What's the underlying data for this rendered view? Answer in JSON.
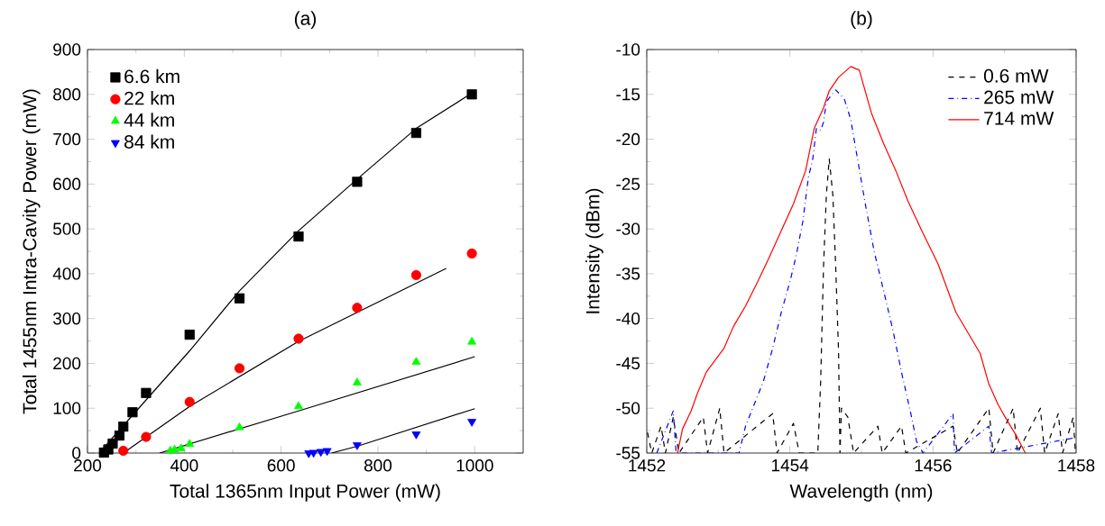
{
  "chart_data": [
    {
      "type": "scatter",
      "title": "(a)",
      "xlabel": "Total 1365nm Input Power (mW)",
      "ylabel": "Total 1455nm Intra-Cavity Power (mW)",
      "xlim": [
        200,
        1100
      ],
      "ylim": [
        0,
        900
      ],
      "xticks": [
        200,
        400,
        600,
        800,
        1000
      ],
      "yticks": [
        0,
        100,
        200,
        300,
        400,
        500,
        600,
        700,
        800,
        900
      ],
      "legend": "top left",
      "series": [
        {
          "name": "6.6 km",
          "marker": "square",
          "color": "#000000",
          "x": [
            234,
            243,
            252,
            266,
            274,
            293,
            321,
            411,
            514,
            636,
            757,
            879,
            994
          ],
          "values": [
            1,
            8,
            21,
            39,
            59,
            91,
            134,
            264,
            345,
            483,
            605,
            714,
            800
          ]
        },
        {
          "name": "22  km",
          "marker": "circle",
          "color": "#ff0000",
          "x": [
            274,
            321,
            411,
            514,
            636,
            757,
            879,
            994
          ],
          "values": [
            5,
            36,
            114,
            189,
            255,
            324,
            397,
            445
          ]
        },
        {
          "name": "44  km",
          "marker": "triangle",
          "color": "#00ff00",
          "x": [
            371,
            380,
            393,
            411,
            514,
            636,
            757,
            879,
            994
          ],
          "values": [
            5,
            7,
            10,
            20,
            57,
            104,
            157,
            203,
            248
          ]
        },
        {
          "name": "84  km",
          "marker": "triangle-down",
          "color": "#0000ff",
          "x": [
            657,
            667,
            682,
            695,
            757,
            879,
            994
          ],
          "values": [
            0,
            1,
            3,
            5,
            18,
            42,
            70
          ]
        },
        {
          "type": "line",
          "color": "#000000",
          "x": [
            224,
            411,
            514,
            636,
            757,
            879,
            1000
          ],
          "values": [
            0,
            228,
            362,
            496,
            611,
            724,
            807
          ]
        },
        {
          "type": "line",
          "color": "#000000",
          "x": [
            274,
            411,
            636,
            941
          ],
          "values": [
            0,
            104,
            249,
            412
          ]
        },
        {
          "type": "line",
          "color": "#000000",
          "x": [
            349,
            636,
            1000
          ],
          "values": [
            0,
            94,
            215
          ]
        },
        {
          "type": "line",
          "color": "#000000",
          "x": [
            704,
            757,
            1000
          ],
          "values": [
            0,
            15,
            99
          ]
        }
      ]
    },
    {
      "type": "line",
      "title": "(b)",
      "xlabel": "Wavelength (nm)",
      "ylabel": "Intensity (dBm)",
      "xlim": [
        1452,
        1458
      ],
      "ylim": [
        -55,
        -10
      ],
      "xticks": [
        1452,
        1454,
        1456,
        1458
      ],
      "yticks": [
        -55,
        -50,
        -45,
        -40,
        -35,
        -30,
        -25,
        -20,
        -15,
        -10
      ],
      "legend": "top right",
      "series": [
        {
          "name": "0.6  mW",
          "color": "#000000",
          "line_style": "dashed",
          "x": [
            1452.01,
            1452.07,
            1452.2,
            1452.26,
            1452.37,
            1452.45,
            1452.79,
            1452.85,
            1453.02,
            1453.08,
            1453.76,
            1453.82,
            1454.05,
            1454.13,
            1454.39,
            1454.43,
            1454.47,
            1454.51,
            1454.55,
            1454.6,
            1454.64,
            1454.68,
            1454.7,
            1454.72,
            1454.81,
            1454.89,
            1455.23,
            1455.29,
            1455.56,
            1455.62,
            1456.28,
            1456.34,
            1456.78,
            1456.84,
            1457.12,
            1457.18,
            1457.5,
            1457.56,
            1457.75,
            1457.81,
            1457.96,
            1457.99
          ],
          "values": [
            -52.7,
            -55,
            -52.0,
            -55,
            -51.0,
            -55,
            -51.0,
            -55,
            -50.0,
            -55,
            -50.6,
            -55,
            -51.7,
            -55,
            -55,
            -47.0,
            -34.2,
            -26.2,
            -22.2,
            -26.2,
            -34.2,
            -43.6,
            -55,
            -50.0,
            -51.0,
            -55,
            -52.0,
            -55,
            -52.0,
            -55,
            -52.0,
            -55,
            -50.0,
            -55,
            -50.0,
            -55,
            -50.0,
            -55,
            -50.6,
            -55,
            -51.0,
            -55
          ]
        },
        {
          "name": "265 mW",
          "color": "#0000ff",
          "line_style": "dashdot",
          "x": [
            1452.14,
            1452.37,
            1452.41,
            1453.29,
            1453.38,
            1453.5,
            1453.63,
            1453.76,
            1453.88,
            1454.01,
            1454.09,
            1454.18,
            1454.26,
            1454.32,
            1454.37,
            1454.43,
            1454.47,
            1454.51,
            1454.64,
            1454.76,
            1454.85,
            1454.93,
            1455.06,
            1455.18,
            1455.31,
            1455.44,
            1455.56,
            1455.69,
            1455.77,
            1455.86,
            1456.28,
            1456.3,
            1456.78,
            1456.82,
            1457.98
          ],
          "values": [
            -55,
            -50.3,
            -55,
            -55,
            -52.0,
            -49.6,
            -47.0,
            -43.3,
            -39.3,
            -35.6,
            -32.9,
            -29.2,
            -24.2,
            -22.2,
            -18.8,
            -19.0,
            -18.1,
            -15.8,
            -14.5,
            -15.5,
            -17.8,
            -21.5,
            -27.5,
            -32.6,
            -36.9,
            -41.3,
            -46.0,
            -50.6,
            -53.7,
            -55.0,
            -50.6,
            -55,
            -52.0,
            -55,
            -53.3
          ]
        },
        {
          "name": "714 mW",
          "color": "#ff0000",
          "line_style": "solid",
          "x": [
            1452.43,
            1452.5,
            1452.62,
            1452.71,
            1452.83,
            1452.96,
            1453.08,
            1453.21,
            1453.38,
            1453.55,
            1453.71,
            1453.88,
            1454.05,
            1454.22,
            1454.34,
            1454.47,
            1454.55,
            1454.68,
            1454.85,
            1454.97,
            1455.14,
            1455.31,
            1455.48,
            1455.65,
            1455.86,
            1456.07,
            1456.32,
            1456.49,
            1456.66,
            1456.78,
            1456.91,
            1457.03,
            1457.16,
            1457.29
          ],
          "values": [
            -55.0,
            -52.3,
            -50.3,
            -48.3,
            -46.0,
            -44.6,
            -43.3,
            -40.9,
            -38.6,
            -35.9,
            -33.2,
            -30.2,
            -27.2,
            -23.5,
            -18.8,
            -16.5,
            -14.6,
            -13.1,
            -11.9,
            -12.3,
            -17.1,
            -20.5,
            -23.5,
            -26.9,
            -30.5,
            -33.9,
            -39.3,
            -41.6,
            -43.9,
            -47.3,
            -49.6,
            -51.3,
            -53.0,
            -55.0
          ]
        }
      ]
    }
  ]
}
